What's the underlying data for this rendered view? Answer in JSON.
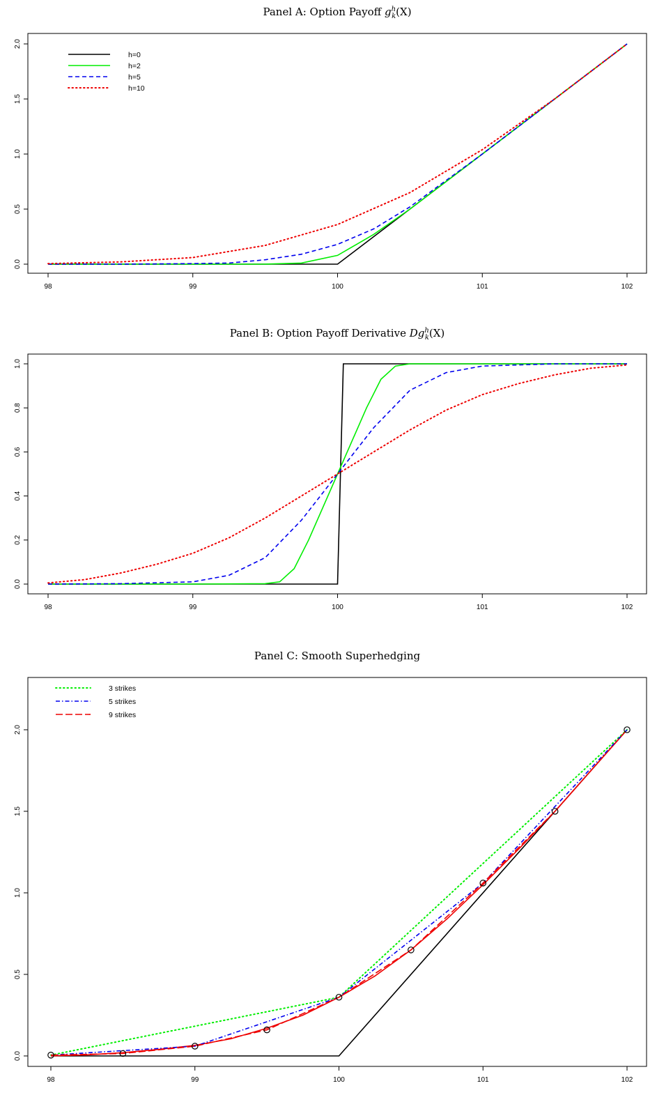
{
  "chart_data": [
    {
      "id": "A",
      "type": "line",
      "title_prefix": "Panel A: Option Payoff ",
      "title_math": "g",
      "title_sup": "h",
      "title_sub": "k",
      "title_suffix": "(X)",
      "xlim": [
        98,
        102
      ],
      "ylim": [
        0,
        2.0
      ],
      "x_ticks": [
        98,
        99,
        100,
        101,
        102
      ],
      "y_ticks": [
        0.0,
        0.5,
        1.0,
        1.5,
        2.0
      ],
      "y_tick_labels": [
        "0.0",
        "0.5",
        "1.0",
        "1.5",
        "2.0"
      ],
      "legend": "top-left",
      "series": [
        {
          "name": "h=0",
          "color": "#000000",
          "dash": "solid",
          "x": [
            98,
            100,
            102
          ],
          "y": [
            0,
            0,
            2.0
          ]
        },
        {
          "name": "h=2",
          "color": "#00ee00",
          "dash": "solid",
          "x": [
            98,
            99,
            99.5,
            99.75,
            100,
            100.25,
            100.5,
            101,
            102
          ],
          "y": [
            0,
            0,
            0.0,
            0.01,
            0.08,
            0.27,
            0.5,
            1.0,
            2.0
          ]
        },
        {
          "name": "h=5",
          "color": "#0000ee",
          "dash": "dashed",
          "x": [
            98,
            98.5,
            99,
            99.25,
            99.5,
            99.75,
            100,
            100.25,
            100.5,
            100.75,
            101,
            101.5,
            102
          ],
          "y": [
            0,
            0,
            0.005,
            0.01,
            0.04,
            0.09,
            0.18,
            0.32,
            0.52,
            0.76,
            1.0,
            1.5,
            2.0
          ]
        },
        {
          "name": "h=10",
          "color": "#ee0000",
          "dash": "dotted",
          "x": [
            98,
            98.5,
            99,
            99.5,
            100,
            100.5,
            101,
            101.5,
            102
          ],
          "y": [
            0.005,
            0.02,
            0.06,
            0.17,
            0.36,
            0.65,
            1.04,
            1.5,
            2.0
          ]
        }
      ]
    },
    {
      "id": "B",
      "type": "line",
      "title_prefix": "Panel B: Option Payoff Derivative ",
      "title_math": "Dg",
      "title_sup": "h",
      "title_sub": "k",
      "title_suffix": "(X)",
      "xlim": [
        98,
        102
      ],
      "ylim": [
        0,
        1.0
      ],
      "x_ticks": [
        98,
        99,
        100,
        101,
        102
      ],
      "y_ticks": [
        0.0,
        0.2,
        0.4,
        0.6,
        0.8,
        1.0
      ],
      "y_tick_labels": [
        "0.0",
        "0.2",
        "0.4",
        "0.6",
        "0.8",
        "1.0"
      ],
      "series": [
        {
          "name": "h=0",
          "color": "#000000",
          "dash": "solid",
          "x": [
            98,
            100,
            100.04,
            102
          ],
          "y": [
            0,
            0,
            1.0,
            1.0
          ]
        },
        {
          "name": "h=2",
          "color": "#00ee00",
          "dash": "solid",
          "x": [
            98,
            99,
            99.5,
            99.6,
            99.7,
            99.8,
            99.9,
            100,
            100.1,
            100.2,
            100.3,
            100.4,
            100.5,
            101,
            102
          ],
          "y": [
            0,
            0,
            0.002,
            0.01,
            0.07,
            0.2,
            0.35,
            0.5,
            0.65,
            0.8,
            0.93,
            0.99,
            1.0,
            1.0,
            1.0
          ]
        },
        {
          "name": "h=5",
          "color": "#0000ee",
          "dash": "dashed",
          "x": [
            98,
            98.5,
            99,
            99.25,
            99.5,
            99.75,
            100,
            100.25,
            100.5,
            100.75,
            101,
            101.5,
            102
          ],
          "y": [
            0,
            0.002,
            0.01,
            0.04,
            0.12,
            0.29,
            0.5,
            0.71,
            0.88,
            0.96,
            0.99,
            1.0,
            1.0
          ]
        },
        {
          "name": "h=10",
          "color": "#ee0000",
          "dash": "dotted",
          "x": [
            98,
            98.25,
            98.5,
            98.75,
            99,
            99.25,
            99.5,
            99.75,
            100,
            100.25,
            100.5,
            100.75,
            101,
            101.25,
            101.5,
            101.75,
            102
          ],
          "y": [
            0.005,
            0.02,
            0.05,
            0.09,
            0.14,
            0.21,
            0.3,
            0.4,
            0.5,
            0.6,
            0.7,
            0.79,
            0.86,
            0.91,
            0.95,
            0.98,
            0.995
          ]
        }
      ]
    },
    {
      "id": "C",
      "type": "line",
      "title_prefix": "Panel C: Smooth Superhedging",
      "title_math": "",
      "title_sup": "",
      "title_sub": "",
      "title_suffix": "",
      "xlim": [
        98,
        102
      ],
      "ylim": [
        0,
        2.0
      ],
      "x_ticks": [
        98,
        99,
        100,
        101,
        102
      ],
      "y_ticks": [
        0.0,
        0.5,
        1.0,
        1.5,
        2.0
      ],
      "y_tick_labels": [
        "0.0",
        "0.5",
        "1.0",
        "1.5",
        "2.0"
      ],
      "legend": "top-left",
      "series": [
        {
          "name": "",
          "color": "#000000",
          "dash": "solid",
          "in_legend": false,
          "x": [
            98,
            100,
            102
          ],
          "y": [
            0,
            0,
            2.0
          ]
        },
        {
          "name": "",
          "color": "#ee0000",
          "dash": "solid",
          "in_legend": false,
          "x": [
            98,
            98.25,
            98.5,
            98.75,
            99,
            99.25,
            99.5,
            99.75,
            100,
            100.25,
            100.5,
            100.75,
            101,
            101.25,
            101.5,
            101.75,
            102
          ],
          "y": [
            0.0,
            0.007,
            0.02,
            0.04,
            0.065,
            0.105,
            0.17,
            0.25,
            0.36,
            0.49,
            0.65,
            0.84,
            1.05,
            1.27,
            1.5,
            1.75,
            2.0
          ]
        },
        {
          "name": "3 strikes",
          "color": "#00ee00",
          "dash": "dotted",
          "x": [
            98,
            100,
            102
          ],
          "y": [
            0.005,
            0.36,
            2.0
          ]
        },
        {
          "name": "5 strikes",
          "color": "#0000ee",
          "dash": "dashdot",
          "x": [
            98,
            99,
            100,
            101,
            102
          ],
          "y": [
            0.005,
            0.06,
            0.36,
            1.06,
            2.0
          ]
        },
        {
          "name": "9 strikes",
          "color": "#ee0000",
          "dash": "longdash",
          "x": [
            98,
            98.5,
            99,
            99.5,
            100,
            100.5,
            101,
            101.5,
            102
          ],
          "y": [
            0.005,
            0.015,
            0.06,
            0.16,
            0.36,
            0.65,
            1.06,
            1.5,
            2.0
          ]
        }
      ],
      "points": {
        "x": [
          98,
          98.5,
          99,
          99.5,
          100,
          100.5,
          101,
          101.5,
          102
        ],
        "y": [
          0.005,
          0.015,
          0.06,
          0.16,
          0.36,
          0.65,
          1.06,
          1.5,
          2.0
        ]
      }
    }
  ]
}
